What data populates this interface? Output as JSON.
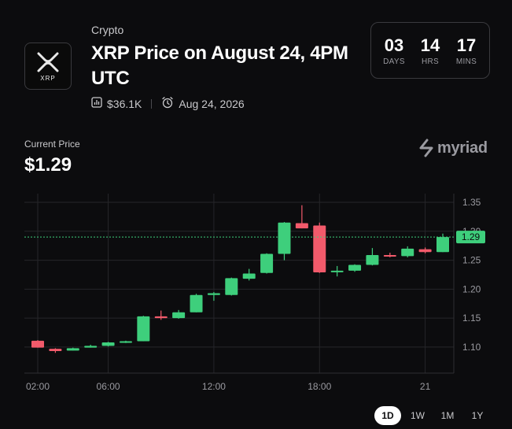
{
  "market": {
    "category": "Crypto",
    "title": "XRP Price on August 24, 4PM UTC",
    "logo_text": "XRP",
    "volume": "$36.1K",
    "end_date": "Aug 24, 2026"
  },
  "countdown": {
    "days": "03",
    "days_label": "DAYS",
    "hours": "14",
    "hours_label": "HRS",
    "mins": "17",
    "mins_label": "MINS"
  },
  "current_price": {
    "label": "Current Price",
    "value": "$1.29"
  },
  "brand": {
    "name": "myriad"
  },
  "ranges": {
    "items": [
      "1D",
      "1W",
      "1M",
      "1Y"
    ],
    "active": "1D"
  },
  "colors": {
    "up": "#3ecf7c",
    "down": "#f25a6b",
    "grid": "#26262a",
    "current_line": "#3ecf7c"
  },
  "chart_data": {
    "type": "candlestick",
    "x_ticks": [
      {
        "label": "02:00",
        "index": 0
      },
      {
        "label": "06:00",
        "index": 4
      },
      {
        "label": "12:00",
        "index": 10
      },
      {
        "label": "18:00",
        "index": 16
      },
      {
        "label": "21",
        "index": 22
      }
    ],
    "y_ticks": [
      1.1,
      1.15,
      1.2,
      1.25,
      1.3,
      1.35
    ],
    "ylim": [
      1.055,
      1.365
    ],
    "current_price": 1.29,
    "current_label": "1.29",
    "candles": [
      {
        "o": 1.111,
        "h": 1.112,
        "l": 1.099,
        "c": 1.099
      },
      {
        "o": 1.097,
        "h": 1.098,
        "l": 1.09,
        "c": 1.093
      },
      {
        "o": 1.094,
        "h": 1.099,
        "l": 1.094,
        "c": 1.098
      },
      {
        "o": 1.099,
        "h": 1.104,
        "l": 1.099,
        "c": 1.102
      },
      {
        "o": 1.102,
        "h": 1.109,
        "l": 1.101,
        "c": 1.108
      },
      {
        "o": 1.109,
        "h": 1.111,
        "l": 1.107,
        "c": 1.11
      },
      {
        "o": 1.11,
        "h": 1.154,
        "l": 1.11,
        "c": 1.153
      },
      {
        "o": 1.153,
        "h": 1.163,
        "l": 1.147,
        "c": 1.15
      },
      {
        "o": 1.15,
        "h": 1.164,
        "l": 1.149,
        "c": 1.16
      },
      {
        "o": 1.16,
        "h": 1.192,
        "l": 1.16,
        "c": 1.19
      },
      {
        "o": 1.19,
        "h": 1.195,
        "l": 1.18,
        "c": 1.193
      },
      {
        "o": 1.19,
        "h": 1.22,
        "l": 1.189,
        "c": 1.219
      },
      {
        "o": 1.218,
        "h": 1.235,
        "l": 1.215,
        "c": 1.227
      },
      {
        "o": 1.228,
        "h": 1.262,
        "l": 1.227,
        "c": 1.261
      },
      {
        "o": 1.261,
        "h": 1.316,
        "l": 1.25,
        "c": 1.315
      },
      {
        "o": 1.314,
        "h": 1.345,
        "l": 1.305,
        "c": 1.305
      },
      {
        "o": 1.31,
        "h": 1.315,
        "l": 1.228,
        "c": 1.229
      },
      {
        "o": 1.23,
        "h": 1.24,
        "l": 1.222,
        "c": 1.232
      },
      {
        "o": 1.232,
        "h": 1.243,
        "l": 1.23,
        "c": 1.242
      },
      {
        "o": 1.242,
        "h": 1.271,
        "l": 1.241,
        "c": 1.259
      },
      {
        "o": 1.259,
        "h": 1.263,
        "l": 1.255,
        "c": 1.257
      },
      {
        "o": 1.257,
        "h": 1.274,
        "l": 1.255,
        "c": 1.27
      },
      {
        "o": 1.269,
        "h": 1.272,
        "l": 1.262,
        "c": 1.264
      },
      {
        "o": 1.264,
        "h": 1.296,
        "l": 1.264,
        "c": 1.29
      }
    ]
  }
}
